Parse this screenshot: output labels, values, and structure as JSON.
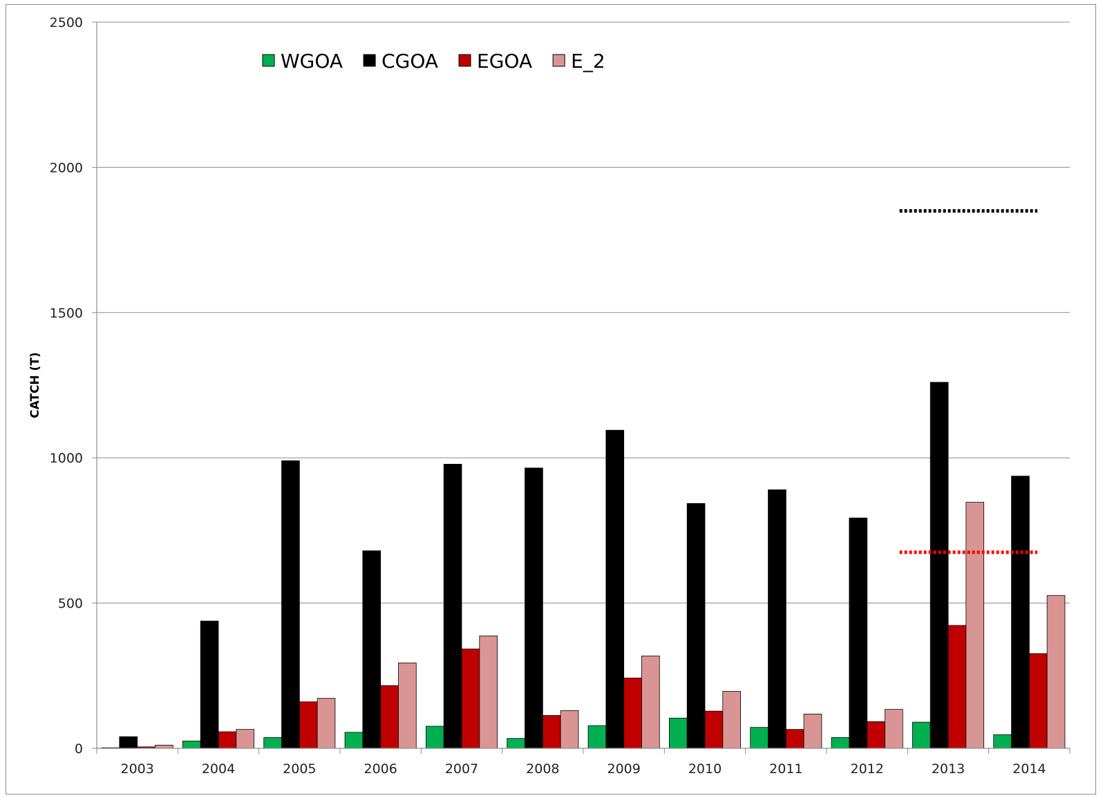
{
  "chart_data": {
    "type": "bar",
    "title": "",
    "xlabel": "",
    "ylabel": "CATCH (T)",
    "ylim": [
      0,
      2500
    ],
    "yticks": [
      0,
      500,
      1000,
      1500,
      2000,
      2500
    ],
    "grid": true,
    "legend_position": "top-left",
    "categories": [
      "2003",
      "2004",
      "2005",
      "2006",
      "2007",
      "2008",
      "2009",
      "2010",
      "2011",
      "2012",
      "2013",
      "2014"
    ],
    "series": [
      {
        "name": "WGOA",
        "color": "#00b050",
        "values": [
          2,
          25,
          37,
          55,
          76,
          34,
          78,
          104,
          72,
          37,
          90,
          47
        ]
      },
      {
        "name": "CGOA",
        "color": "#000000",
        "values": [
          40,
          438,
          990,
          680,
          978,
          965,
          1095,
          843,
          890,
          793,
          1260,
          937
        ]
      },
      {
        "name": "EGOA",
        "color": "#c00000",
        "values": [
          5,
          57,
          160,
          216,
          342,
          113,
          242,
          128,
          65,
          92,
          423,
          326
        ]
      },
      {
        "name": "E_2",
        "color": "#d99594",
        "values": [
          11,
          65,
          172,
          294,
          387,
          130,
          318,
          196,
          118,
          134,
          847,
          526
        ]
      }
    ],
    "reference_lines": [
      {
        "color": "#000000",
        "style": "dotted",
        "y": 1850,
        "x_start": "2013",
        "x_end": "2014"
      },
      {
        "color": "#ff0000",
        "style": "dotted",
        "y": 675,
        "x_start": "2013",
        "x_end": "2014"
      }
    ]
  }
}
